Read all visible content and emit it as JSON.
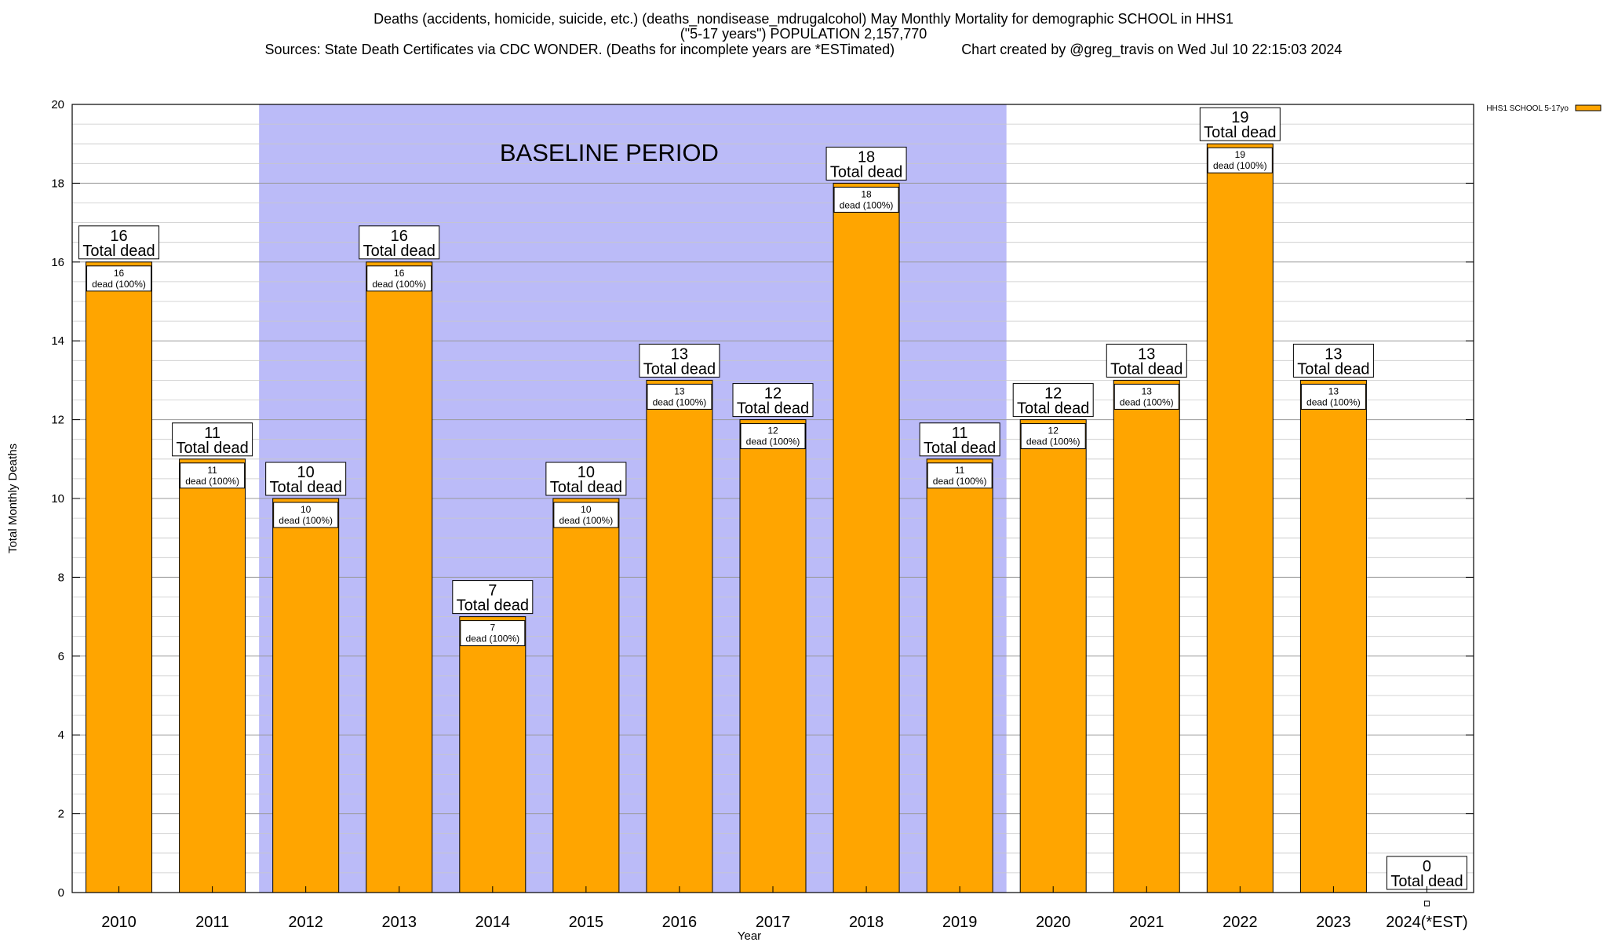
{
  "titles": {
    "line1": "Deaths (accidents, homicide, suicide, etc.) (deaths_nondisease_mdrugalcohol) May Monthly Mortality for demographic SCHOOL in HHS1",
    "line2": "(\"5-17 years\") POPULATION 2,157,770",
    "line3_left": "Sources: State Death Certificates via CDC WONDER. (Deaths for incomplete years are *ESTimated)",
    "line3_right": "Chart created by @greg_travis on Wed Jul 10 22:15:03 2024"
  },
  "colors": {
    "bar": "#FFA500",
    "baseline": "#BBBBF8",
    "grid": "#b0b0b0"
  },
  "chart_data": {
    "type": "bar",
    "xlabel": "Year",
    "ylabel": "Total Monthly Deaths",
    "ylim": [
      0,
      20
    ],
    "yticks": [
      0,
      2,
      4,
      6,
      8,
      10,
      12,
      14,
      16,
      18,
      20
    ],
    "categories": [
      "2010",
      "2011",
      "2012",
      "2013",
      "2014",
      "2015",
      "2016",
      "2017",
      "2018",
      "2019",
      "2020",
      "2021",
      "2022",
      "2023",
      "2024(*EST)"
    ],
    "series": [
      {
        "name": "HHS1 SCHOOL 5-17yo",
        "values": [
          16,
          11,
          10,
          16,
          7,
          10,
          13,
          12,
          18,
          11,
          12,
          13,
          19,
          13,
          0
        ]
      }
    ],
    "total_label": "Total dead",
    "inner_label_suffix": "dead (100%)",
    "baseline_period": {
      "label": "BASELINE PERIOD",
      "start_category": "2012",
      "end_category": "2019"
    },
    "legend_position": "top-right"
  }
}
